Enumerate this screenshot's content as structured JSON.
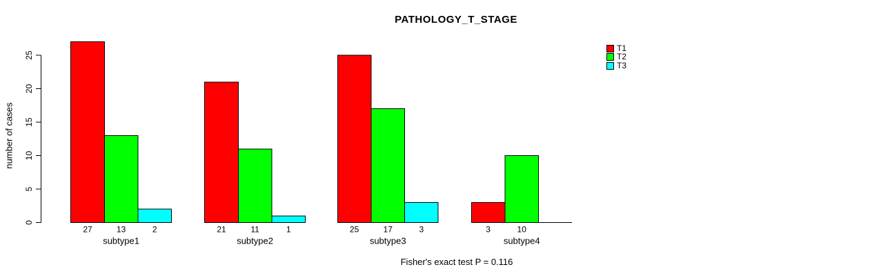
{
  "chart_data": {
    "type": "bar",
    "title": "PATHOLOGY_T_STAGE",
    "ylabel": "number of cases",
    "xlabel": "",
    "categories": [
      "subtype1",
      "subtype2",
      "subtype3",
      "subtype4"
    ],
    "series": [
      {
        "name": "T1",
        "color": "#ff0000",
        "values": [
          27,
          21,
          25,
          3
        ]
      },
      {
        "name": "T2",
        "color": "#00ff00",
        "values": [
          13,
          11,
          17,
          10
        ]
      },
      {
        "name": "T3",
        "color": "#00ffff",
        "values": [
          2,
          1,
          3,
          0
        ]
      }
    ],
    "bar_value_labels": [
      [
        "27",
        "13",
        "2"
      ],
      [
        "21",
        "11",
        "1"
      ],
      [
        "25",
        "17",
        "3"
      ],
      [
        "3",
        "10",
        ""
      ]
    ],
    "yticks": [
      0,
      5,
      10,
      15,
      20,
      25
    ],
    "ylim": [
      0,
      25
    ],
    "grid": false,
    "legend_position": "right",
    "legend_entries": [
      "T1",
      "T2",
      "T3"
    ],
    "annotation": "Fisher's exact test P = 0.116",
    "axis_color": "#000000",
    "background_color": "#ffffff"
  }
}
